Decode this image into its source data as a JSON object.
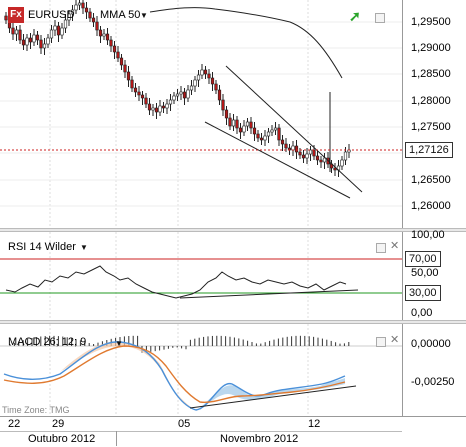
{
  "symbol": "EURUSD",
  "indicator_overlay": "MMA 50",
  "price_pane": {
    "axis_labels": [
      "1,29500",
      "1,29000",
      "1,28500",
      "1,28000",
      "1,27500",
      "1,27000",
      "1,26500",
      "1,26000"
    ],
    "current_price": "1,27126"
  },
  "rsi_pane": {
    "title": "RSI 14 Wilder",
    "axis_labels": [
      "100,00",
      "50,00",
      "0,00"
    ],
    "level_high": "70,00",
    "level_low": "30,00"
  },
  "macd_pane": {
    "title": "MACD 26; 12; 9",
    "axis_labels": [
      "0,00000",
      "-0,00250"
    ],
    "timezone": "Time Zone: TMG"
  },
  "x_axis": {
    "days": [
      "22",
      "29",
      "05",
      "12"
    ],
    "months": [
      "Outubro 2012",
      "Novembro 2012"
    ]
  },
  "colors": {
    "bull": "#ffffff",
    "bear": "#b01818",
    "price_line": "#cc2222",
    "rsi_high": "#cc2222",
    "rsi_low": "#229922",
    "macd_fill_blue": "#a9cdea",
    "macd_fill_orange": "#f5c7a5",
    "macd_line": "#4a90d9",
    "signal_line": "#e07a30"
  }
}
